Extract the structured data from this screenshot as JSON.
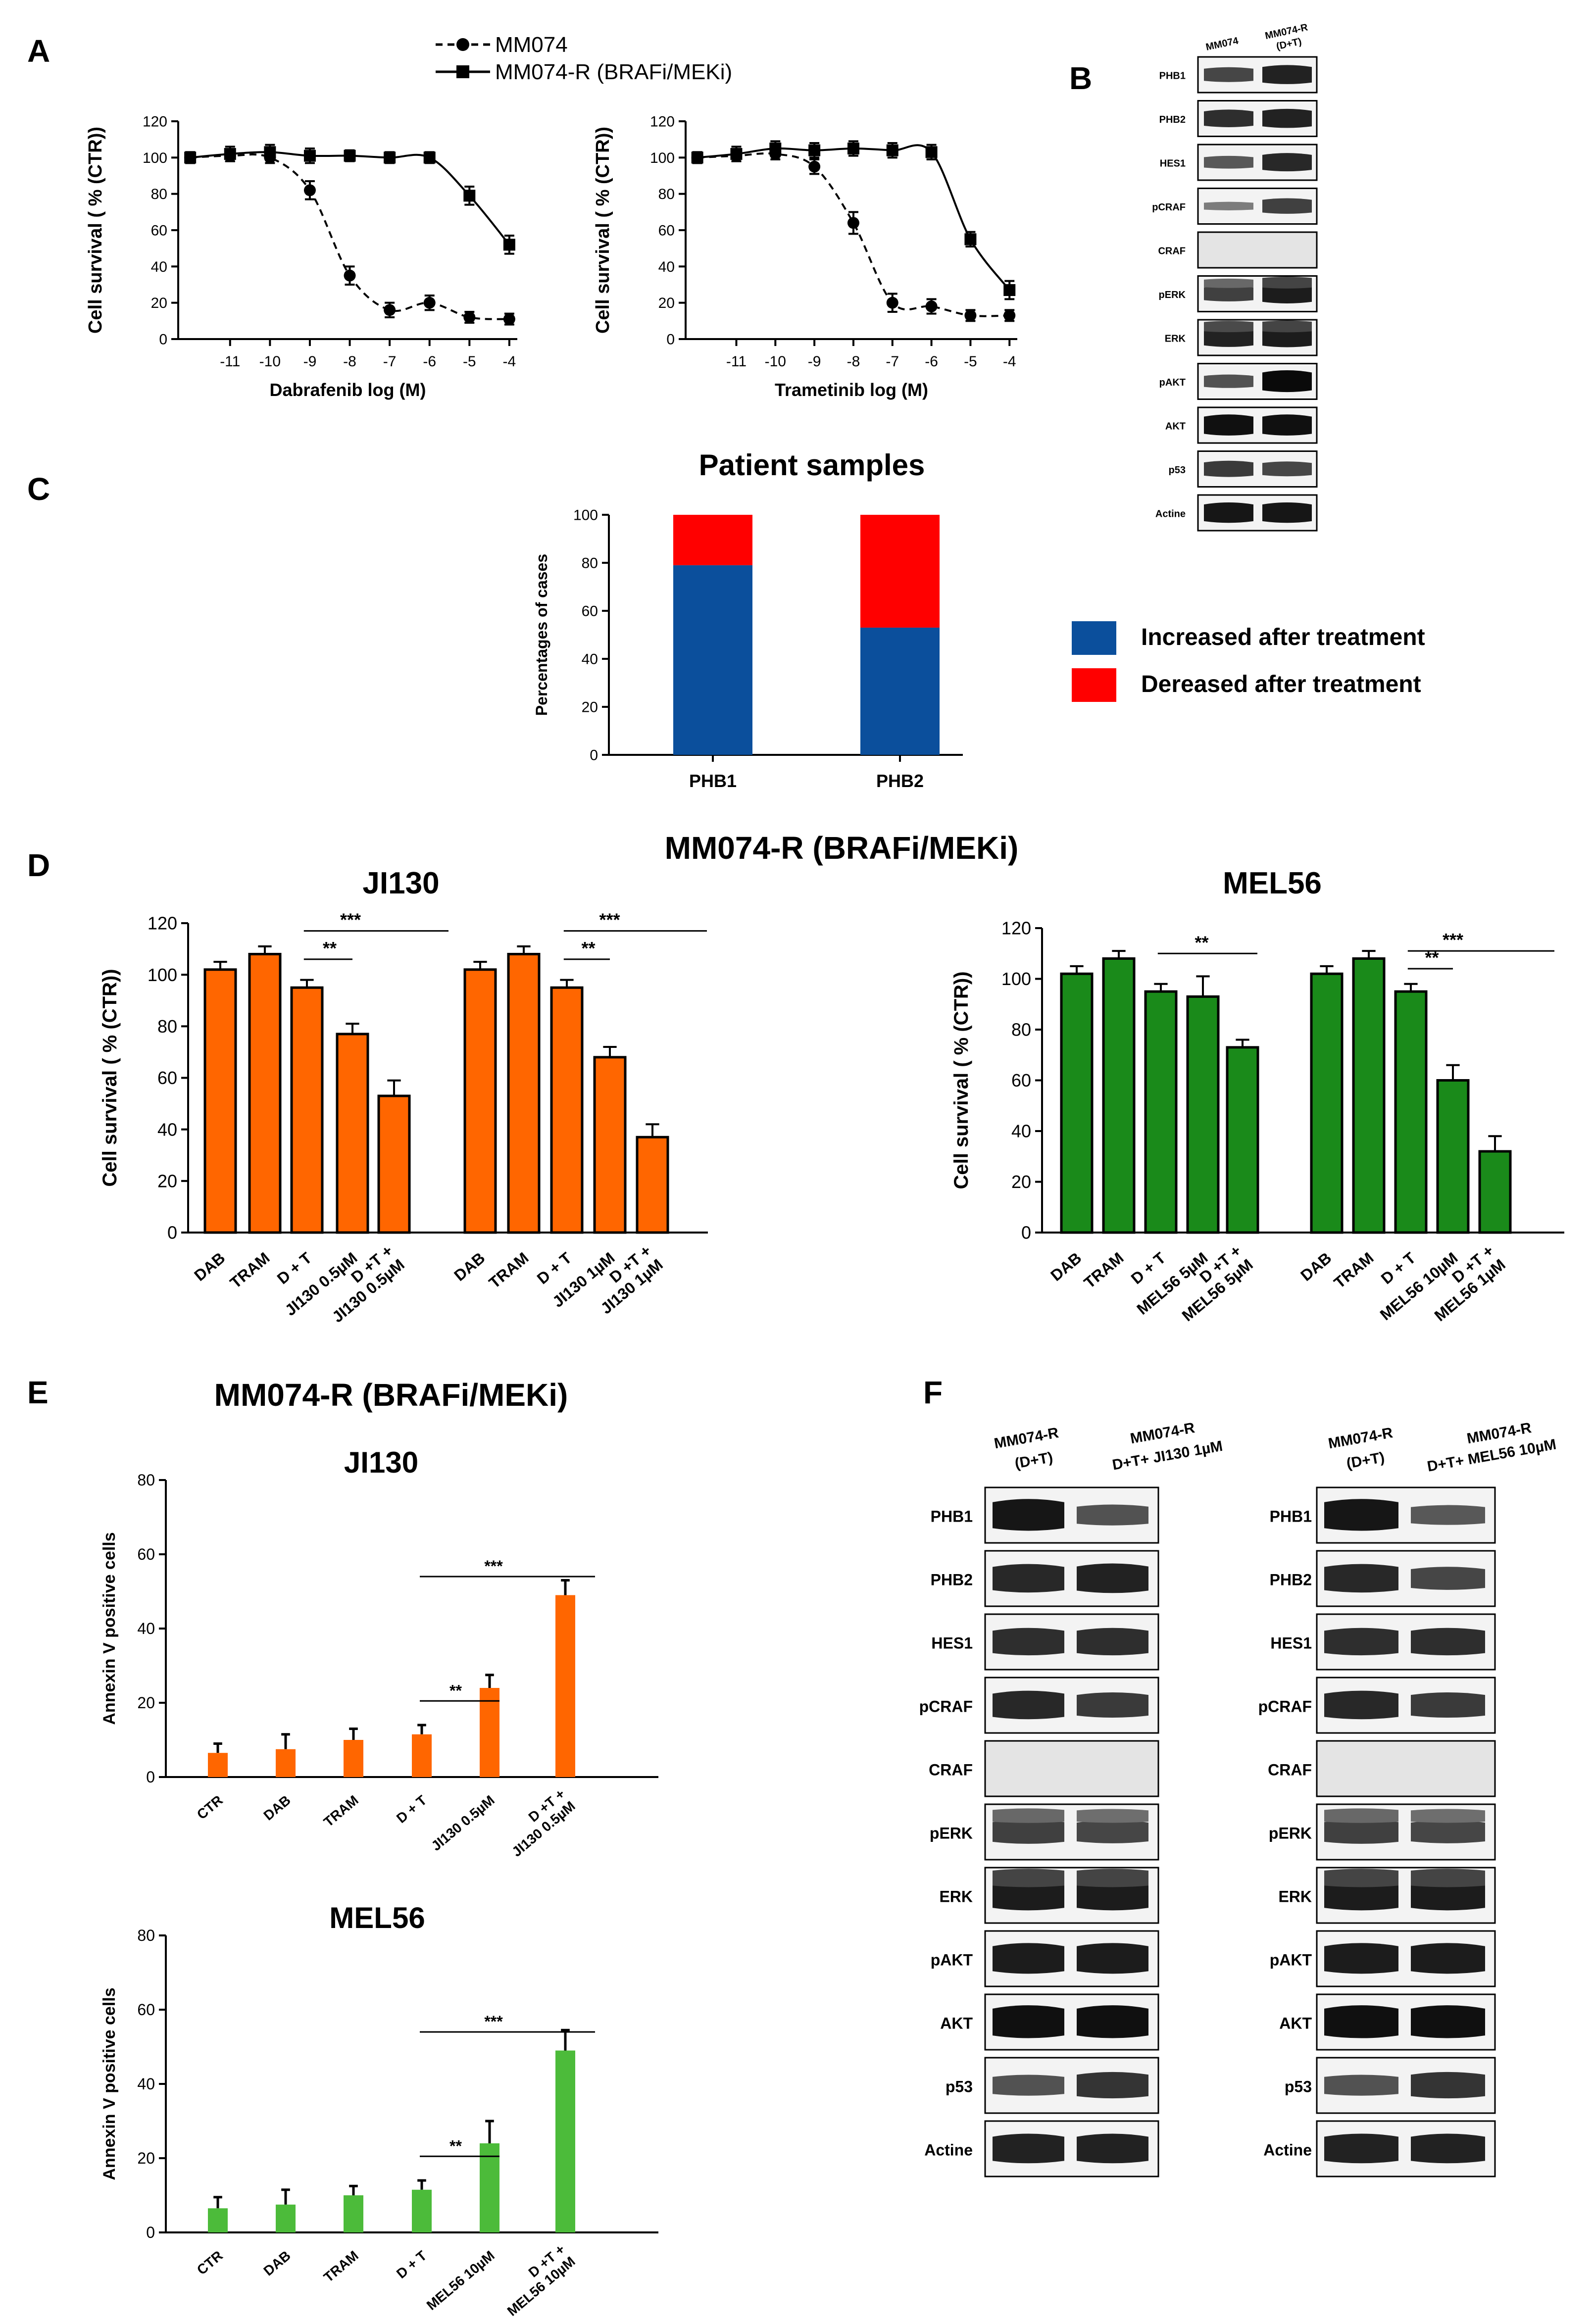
{
  "panels": {
    "A": "A",
    "B": "B",
    "C": "C",
    "D": "D",
    "E": "E",
    "F": "F"
  },
  "colors": {
    "orange": "#ff6600",
    "green": "#1a8a1a",
    "lightgreen": "#4cbb3a",
    "blue": "#0b4f9c",
    "red": "#ff0000",
    "black": "#000000"
  },
  "legend_a": {
    "mm074": "MM074",
    "mm074r": "MM074-R (BRAFi/MEKi)"
  },
  "chart_data": [
    {
      "id": "A1",
      "type": "line",
      "xlabel": "Dabrafenib log (M)",
      "ylabel": "Cell survival ( % (CTR))",
      "x": [
        -12,
        -11,
        -10,
        -9,
        -8,
        -7,
        -6,
        -5,
        -4
      ],
      "xticks": [
        -11,
        -10,
        -9,
        -8,
        -7,
        -6,
        -5,
        -4
      ],
      "ylim": [
        0,
        120
      ],
      "yticks": [
        0,
        20,
        40,
        60,
        80,
        100,
        120
      ],
      "series": [
        {
          "name": "MM074",
          "style": "dashed",
          "marker": "circle",
          "values": [
            100,
            101,
            100,
            82,
            35,
            16,
            20,
            12,
            11
          ],
          "errors": [
            3,
            3,
            3,
            5,
            5,
            4,
            4,
            3,
            3
          ]
        },
        {
          "name": "MM074-R (BRAFi/MEKi)",
          "style": "solid",
          "marker": "square",
          "values": [
            100,
            102,
            103,
            101,
            101,
            100,
            100,
            79,
            52
          ],
          "errors": [
            3,
            4,
            4,
            4,
            3,
            3,
            3,
            5,
            5
          ]
        }
      ]
    },
    {
      "id": "A2",
      "type": "line",
      "xlabel": "Trametinib log (M)",
      "ylabel": "Cell survival ( % (CTR))",
      "x": [
        -12,
        -11,
        -10,
        -9,
        -8,
        -7,
        -6,
        -5,
        -4
      ],
      "xticks": [
        -11,
        -10,
        -9,
        -8,
        -7,
        -6,
        -5,
        -4
      ],
      "ylim": [
        0,
        120
      ],
      "yticks": [
        0,
        20,
        40,
        60,
        80,
        100,
        120
      ],
      "series": [
        {
          "name": "MM074",
          "style": "dashed",
          "marker": "circle",
          "values": [
            100,
            101,
            102,
            95,
            64,
            20,
            18,
            13,
            13
          ],
          "errors": [
            3,
            3,
            3,
            4,
            6,
            5,
            4,
            3,
            3
          ]
        },
        {
          "name": "MM074-R (BRAFi/MEKi)",
          "style": "solid",
          "marker": "square",
          "values": [
            100,
            102,
            105,
            104,
            105,
            104,
            103,
            55,
            27
          ],
          "errors": [
            3,
            4,
            4,
            4,
            4,
            4,
            4,
            4,
            5
          ]
        }
      ]
    },
    {
      "id": "C",
      "type": "bar",
      "title": "Patient samples",
      "ylabel": "Percentages of cases",
      "categories": [
        "PHB1",
        "PHB2"
      ],
      "ylim": [
        0,
        100
      ],
      "yticks": [
        0,
        20,
        40,
        60,
        80,
        100
      ],
      "series": [
        {
          "name": "Increased after treatment",
          "values": [
            79,
            53
          ]
        },
        {
          "name": "Dereased after treatment",
          "values": [
            21,
            47
          ]
        }
      ]
    },
    {
      "id": "D1",
      "type": "bar",
      "title": "JI130",
      "ylabel": "Cell survival ( % (CTR))",
      "ylim": [
        0,
        120
      ],
      "yticks": [
        0,
        20,
        40,
        60,
        80,
        100,
        120
      ],
      "categories": [
        "DAB",
        "TRAM",
        "D + T",
        "JI130 0.5µM",
        "D +T + JI130 0.5µM",
        "DAB",
        "TRAM",
        "D + T",
        "JI130 1µM",
        "D +T + JI130 1µM"
      ],
      "values": [
        102,
        108,
        95,
        77,
        53,
        102,
        108,
        95,
        68,
        37
      ],
      "errors": [
        3,
        3,
        3,
        4,
        6,
        3,
        3,
        3,
        4,
        5
      ],
      "significance": [
        {
          "label": "**"
        },
        {
          "label": "***"
        },
        {
          "label": "**"
        },
        {
          "label": "***"
        }
      ]
    },
    {
      "id": "D2",
      "type": "bar",
      "title": "MEL56",
      "ylabel": "Cell survival ( % (CTR))",
      "ylim": [
        0,
        120
      ],
      "yticks": [
        0,
        20,
        40,
        60,
        80,
        100,
        120
      ],
      "categories": [
        "DAB",
        "TRAM",
        "D + T",
        "MEL56 5µM",
        "D +T + MEL56 5µM",
        "DAB",
        "TRAM",
        "D + T",
        "MEL56 10µM",
        "D +T + MEL56 1µM"
      ],
      "values": [
        102,
        108,
        95,
        93,
        73,
        102,
        108,
        95,
        60,
        32
      ],
      "errors": [
        3,
        3,
        3,
        8,
        3,
        3,
        3,
        3,
        6,
        6
      ],
      "significance": [
        {
          "label": "**"
        },
        {
          "label": "**"
        },
        {
          "label": "***"
        }
      ]
    },
    {
      "id": "E1",
      "type": "bar",
      "title": "JI130",
      "ylabel": "Annexin V positive cells",
      "ylim": [
        0,
        80
      ],
      "yticks": [
        0,
        20,
        40,
        60,
        80
      ],
      "categories": [
        "CTR",
        "DAB",
        "TRAM",
        "D + T",
        "JI130 0.5µM",
        "D +T + JI130 0.5µM"
      ],
      "values": [
        6.5,
        7.5,
        10,
        11.5,
        24,
        49
      ],
      "errors": [
        2.5,
        4,
        3,
        2.5,
        3.5,
        4
      ],
      "significance": [
        {
          "label": "**"
        },
        {
          "label": "***"
        }
      ]
    },
    {
      "id": "E2",
      "type": "bar",
      "title": "MEL56",
      "ylabel": "Annexin V positive cells",
      "ylim": [
        0,
        80
      ],
      "yticks": [
        0,
        20,
        40,
        60,
        80
      ],
      "categories": [
        "CTR",
        "DAB",
        "TRAM",
        "D + T",
        "MEL56 10µM",
        "D +T + MEL56 10µM"
      ],
      "values": [
        6.5,
        7.5,
        10,
        11.5,
        24,
        49
      ],
      "errors": [
        3,
        4,
        2.5,
        2.5,
        6,
        5.5
      ],
      "significance": [
        {
          "label": "**"
        },
        {
          "label": "***"
        }
      ]
    }
  ],
  "headings": {
    "d": "MM074-R (BRAFi/MEKi)",
    "e": "MM074-R (BRAFi/MEKi)"
  },
  "blot_b": {
    "lanes": [
      "MM074",
      "MM074-R",
      "(D+T)"
    ],
    "proteins": [
      "PHB1",
      "PHB2",
      "HES1",
      "pCRAF",
      "CRAF",
      "pERK",
      "ERK",
      "pAKT",
      "AKT",
      "p53",
      "Actine"
    ]
  },
  "blot_f1": {
    "lanes": [
      "MM074-R",
      "(D+T)",
      "MM074-R",
      "D+T+ JI130 1µM"
    ],
    "proteins": [
      "PHB1",
      "PHB2",
      "HES1",
      "pCRAF",
      "CRAF",
      "pERK",
      "ERK",
      "pAKT",
      "AKT",
      "p53",
      "Actine"
    ]
  },
  "blot_f2": {
    "lanes": [
      "MM074-R",
      "(D+T)",
      "MM074-R",
      "D+T+ MEL56 10µM"
    ],
    "proteins": [
      "PHB1",
      "PHB2",
      "HES1",
      "pCRAF",
      "CRAF",
      "pERK",
      "ERK",
      "pAKT",
      "AKT",
      "p53",
      "Actine"
    ]
  }
}
